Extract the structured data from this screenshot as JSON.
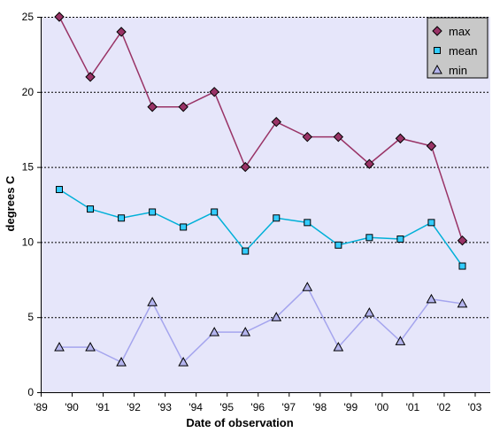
{
  "chart_data": {
    "type": "line",
    "xlabel": "Date of observation",
    "ylabel": "degrees C",
    "ylim": [
      0,
      25
    ],
    "yticks": [
      0,
      5,
      10,
      15,
      20,
      25
    ],
    "xlim": [
      1989,
      2003.5
    ],
    "xticks": [
      1989,
      1990,
      1991,
      1992,
      1993,
      1994,
      1995,
      1996,
      1997,
      1998,
      1999,
      2000,
      2001,
      2002,
      2003
    ],
    "xtick_labels": [
      "'89",
      "'90",
      "'91",
      "'92",
      "'93",
      "'94",
      "'95",
      "'96",
      "'97",
      "'98",
      "'99",
      "'00",
      "'01",
      "'02",
      "'03"
    ],
    "grid": "horizontal dotted",
    "legend_position": "top-right",
    "background": "#e6e6fa",
    "x": [
      1989.6,
      1990.6,
      1991.6,
      1992.6,
      1993.6,
      1994.6,
      1995.6,
      1996.6,
      1997.6,
      1998.6,
      1999.6,
      2000.6,
      2001.6,
      2002.6
    ],
    "series": [
      {
        "name": "max",
        "marker": "diamond",
        "color": "#993366",
        "line_color": "#993366",
        "values": [
          25,
          21,
          24,
          19,
          19,
          20,
          15,
          18,
          17,
          17,
          15.2,
          16.9,
          16.4,
          10.1
        ]
      },
      {
        "name": "mean",
        "marker": "square",
        "color": "#33ccff",
        "line_color": "#00b0d8",
        "values": [
          13.5,
          12.2,
          11.6,
          12,
          11,
          12,
          9.4,
          11.6,
          11.3,
          9.8,
          10.3,
          10.2,
          11.3,
          8.4
        ]
      },
      {
        "name": "min",
        "marker": "triangle",
        "color": "#b4b4ee",
        "line_color": "#a5a5ee",
        "values": [
          3,
          3,
          2,
          6,
          2,
          4,
          4,
          5,
          7,
          3,
          5.3,
          3.4,
          6.2,
          5.9
        ]
      }
    ]
  }
}
